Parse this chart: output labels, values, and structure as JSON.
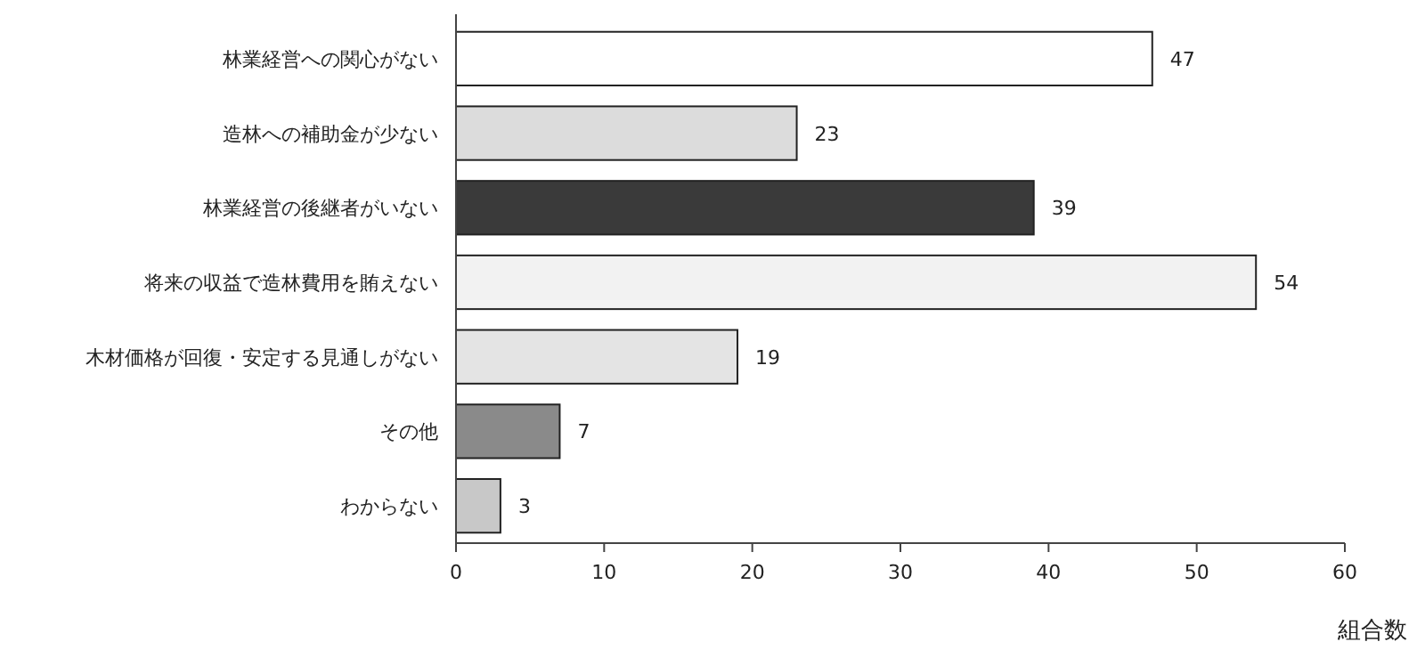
{
  "chart_data": {
    "type": "bar",
    "orientation": "horizontal",
    "xlabel": "組合数",
    "categories": [
      "林業経営への関心がない",
      "造林への補助金が少ない",
      "林業経営の後継者がいない",
      "将来の収益で造林費用を賄えない",
      "木材価格が回復・安定する見通しがない",
      "その他",
      "わからない"
    ],
    "values": [
      47,
      23,
      39,
      54,
      19,
      7,
      3
    ],
    "colors": [
      "#ffffff",
      "#dcdcdc",
      "#3a3a3a",
      "#f2f2f2",
      "#e4e4e4",
      "#8a8a8a",
      "#c8c8c8"
    ],
    "xlim": [
      0,
      60
    ],
    "xticks": [
      0,
      10,
      20,
      30,
      40,
      50,
      60
    ],
    "data_labels": true,
    "grid": false
  }
}
